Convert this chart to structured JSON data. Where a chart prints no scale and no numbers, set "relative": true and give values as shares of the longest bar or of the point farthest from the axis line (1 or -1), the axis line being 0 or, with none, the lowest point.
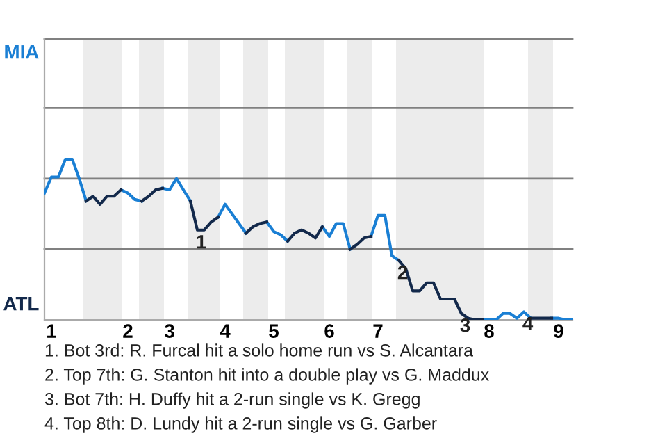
{
  "chart_data": {
    "type": "line",
    "relative": true,
    "categories": [
      null,
      "1",
      null,
      null,
      null,
      null,
      null,
      null,
      null,
      null,
      null,
      null,
      "2",
      null,
      null,
      null,
      null,
      null,
      "3",
      null,
      null,
      null,
      null,
      null,
      null,
      null,
      "4",
      null,
      null,
      null,
      null,
      null,
      null,
      "5",
      null,
      null,
      null,
      null,
      null,
      null,
      null,
      "6",
      null,
      null,
      null,
      null,
      null,
      null,
      "7",
      null,
      null,
      null,
      null,
      null,
      null,
      null,
      null,
      null,
      null,
      null,
      null,
      null,
      null,
      null,
      "8",
      null,
      null,
      null,
      null,
      null,
      null,
      null,
      null,
      null,
      "9",
      null,
      null
    ],
    "series": [
      {
        "color": "#1a7fd4",
        "values": [
          0.79,
          0.89,
          0.89,
          1,
          1,
          0.88,
          0.74,
          null,
          null,
          null,
          null,
          0.81,
          0.79,
          0.75,
          0.74,
          null,
          null,
          0.82,
          0.81,
          0.88,
          0.81,
          0.74,
          null,
          null,
          null,
          0.64,
          0.72,
          0.66,
          0.6,
          0.54,
          null,
          null,
          0.61,
          0.55,
          0.53,
          0.49,
          null,
          null,
          null,
          null,
          0.58,
          0.52,
          0.6,
          0.6,
          0.44,
          null,
          null,
          0.52,
          0.65,
          0.65,
          0.4,
          0.37,
          null,
          null,
          null,
          null,
          null,
          null,
          null,
          null,
          null,
          null,
          null,
          0,
          0,
          0,
          0.04,
          0.04,
          0.01,
          0.05,
          0.01,
          null,
          null,
          0.01,
          0.01,
          0,
          0
        ]
      },
      {
        "color": "#13294b",
        "values": [
          null,
          null,
          null,
          null,
          null,
          null,
          0.74,
          0.77,
          0.72,
          0.77,
          0.77,
          0.81,
          null,
          null,
          0.74,
          0.77,
          0.81,
          0.82,
          null,
          null,
          null,
          0.74,
          0.56,
          0.56,
          0.61,
          0.64,
          null,
          null,
          null,
          0.54,
          0.58,
          0.6,
          0.61,
          null,
          null,
          0.49,
          0.54,
          0.56,
          0.54,
          0.51,
          0.58,
          null,
          null,
          null,
          0.44,
          0.47,
          0.51,
          0.52,
          null,
          null,
          null,
          0.37,
          0.32,
          0.18,
          0.18,
          0.23,
          0.23,
          0.13,
          0.13,
          0.13,
          0.04,
          0.01,
          0,
          0,
          null,
          null,
          null,
          null,
          null,
          null,
          0.01,
          0.01,
          0.01,
          0.01,
          null,
          null,
          null
        ]
      }
    ],
    "marker": "none",
    "line_style": "solid",
    "ref_lines": [
      {
        "axis": "y",
        "value": 0.44,
        "color": "#808080"
      },
      {
        "axis": "y",
        "value": 0.88,
        "color": "#808080"
      },
      {
        "axis": "y",
        "value": 1.32,
        "color": "#808080"
      },
      {
        "axis": "y",
        "value": 1.75,
        "color": "#808080"
      }
    ],
    "annotations": [
      "MIA",
      "ATL",
      {
        "text": "1",
        "y": 0.56
      },
      {
        "text": "2",
        "y": 0.37
      },
      {
        "text": "3",
        "y": 0.04
      },
      {
        "text": "4",
        "y": 0.05
      },
      "1. Bot 3rd: R. Furcal hit a solo home run vs S. Alcantara",
      "2. Top 7th: G. Stanton hit into a double play vs G. Maddux",
      "3. Bot 7th: H. Duffy hit a 2-run single vs K. Gregg",
      "4. Top 8th: D. Lundy hit a 2-run single vs G. Garber"
    ]
  }
}
